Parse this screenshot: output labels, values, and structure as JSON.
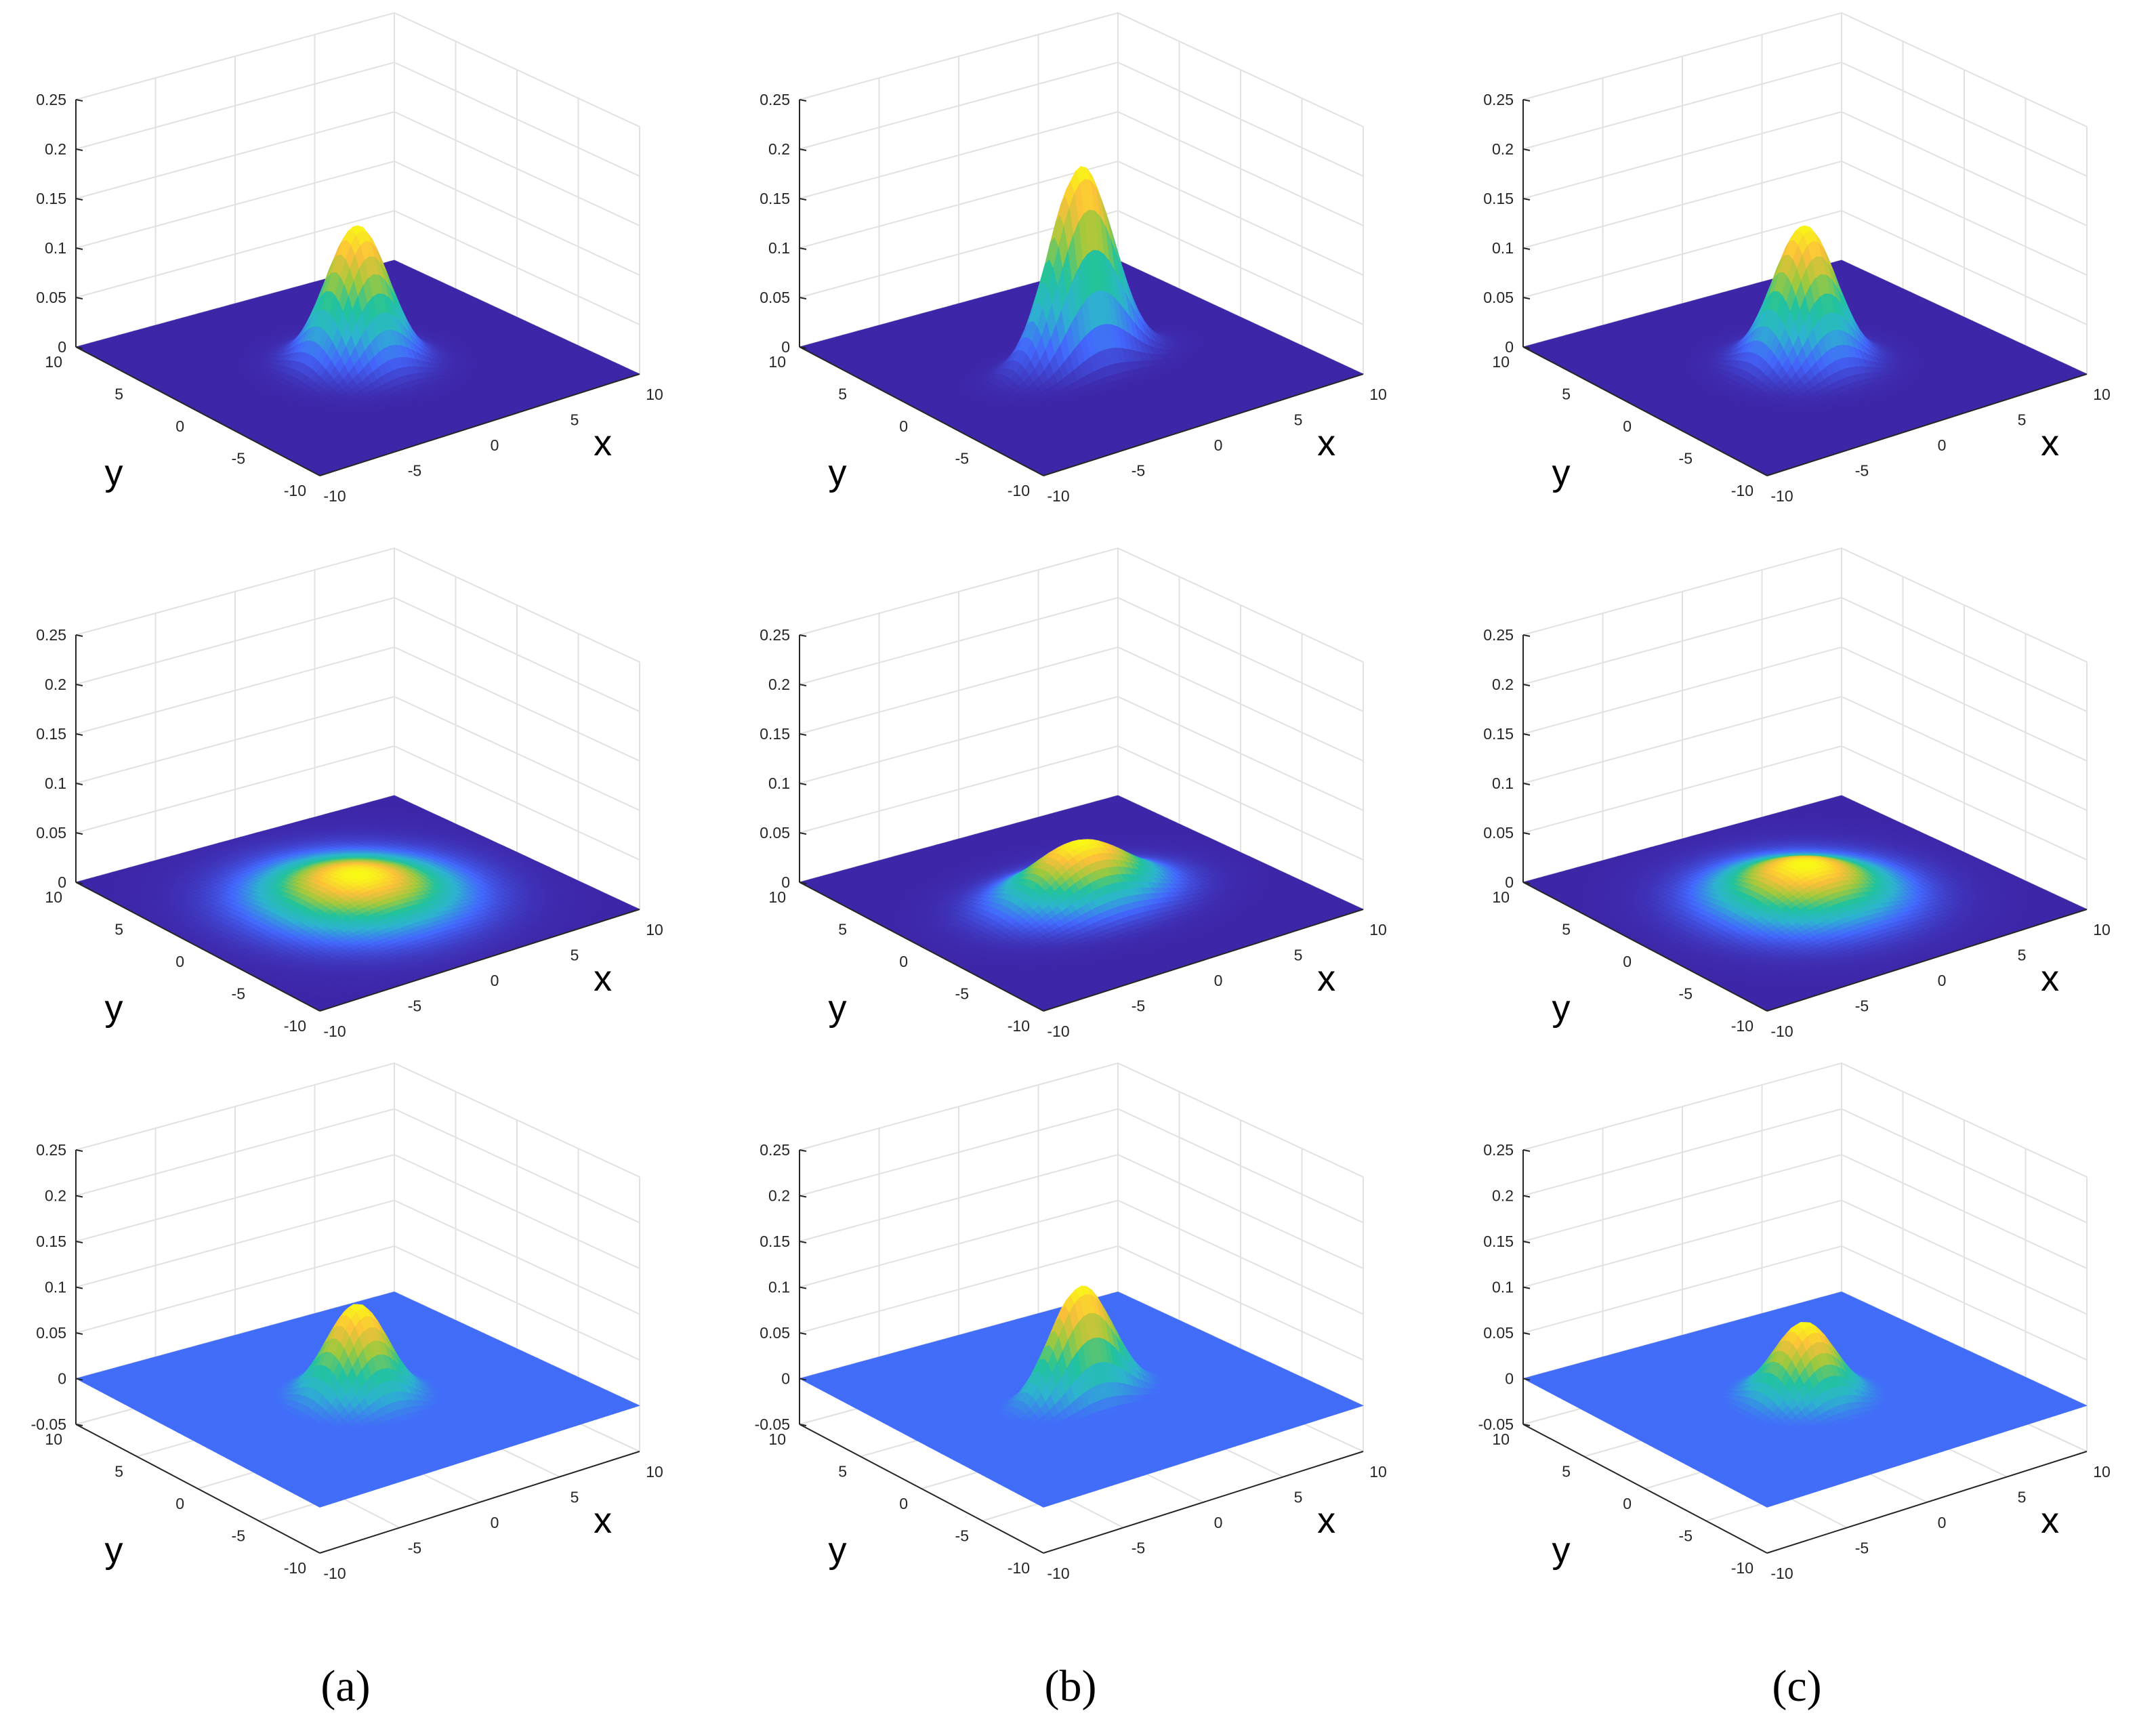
{
  "figure": {
    "captions": [
      "(a)",
      "(b)",
      "(c)"
    ]
  },
  "colors": {
    "colormap": [
      "#3e26a8",
      "#4367fd",
      "#2db4cf",
      "#21c39d",
      "#9fc93d",
      "#fbc03a",
      "#f9fb15"
    ],
    "background": "#ffffff",
    "grid": "#e1e1e1",
    "axis": "#262626"
  },
  "chart_data": [
    {
      "type": "surface",
      "panel": "row1-a",
      "xlabel": "x",
      "ylabel": "y",
      "xlim": [
        -10,
        10
      ],
      "ylim": [
        -10,
        10
      ],
      "zlim": [
        0,
        0.25
      ],
      "zticks": [
        "0",
        "0.05",
        "0.1",
        "0.15",
        "0.2",
        "0.25"
      ],
      "xticks": [
        "-10",
        "-5",
        "0",
        "5",
        "10"
      ],
      "yticks": [
        "-10",
        "-5",
        "0",
        "5",
        "10"
      ],
      "peak": 0.14,
      "center": [
        0,
        0
      ],
      "sigma": [
        1.6,
        1.6
      ],
      "floor": 0,
      "dip": 0
    },
    {
      "type": "surface",
      "panel": "row1-b",
      "xlabel": "x",
      "ylabel": "y",
      "xlim": [
        -10,
        10
      ],
      "ylim": [
        -10,
        10
      ],
      "zlim": [
        0,
        0.25
      ],
      "zticks": [
        "0",
        "0.05",
        "0.1",
        "0.15",
        "0.2",
        "0.25"
      ],
      "xticks": [
        "-10",
        "-5",
        "0",
        "5",
        "10"
      ],
      "yticks": [
        "-10",
        "-5",
        "0",
        "5",
        "10"
      ],
      "peak": 0.2,
      "center": [
        0,
        0
      ],
      "sigma": [
        1.9,
        1.0
      ],
      "floor": 0,
      "dip": 0
    },
    {
      "type": "surface",
      "panel": "row1-c",
      "xlabel": "x",
      "ylabel": "y",
      "xlim": [
        -10,
        10
      ],
      "ylim": [
        -10,
        10
      ],
      "zlim": [
        0,
        0.25
      ],
      "zticks": [
        "0",
        "0.05",
        "0.1",
        "0.15",
        "0.2",
        "0.25"
      ],
      "xticks": [
        "-10",
        "-5",
        "0",
        "5",
        "10"
      ],
      "yticks": [
        "-10",
        "-5",
        "0",
        "5",
        "10"
      ],
      "peak": 0.14,
      "center": [
        0,
        0
      ],
      "sigma": [
        1.6,
        1.6
      ],
      "floor": 0,
      "dip": 0
    },
    {
      "type": "surface",
      "panel": "row2-a",
      "xlabel": "x",
      "ylabel": "y",
      "xlim": [
        -10,
        10
      ],
      "ylim": [
        -10,
        10
      ],
      "zlim": [
        0,
        0.25
      ],
      "zticks": [
        "0",
        "0.05",
        "0.1",
        "0.15",
        "0.2",
        "0.25"
      ],
      "xticks": [
        "-10",
        "-5",
        "0",
        "5",
        "10"
      ],
      "yticks": [
        "-10",
        "-5",
        "0",
        "5",
        "10"
      ],
      "peak": 0.025,
      "center": [
        0,
        0
      ],
      "sigma": [
        3.3,
        3.3
      ],
      "floor": 0,
      "dip": 0
    },
    {
      "type": "surface",
      "panel": "row2-b",
      "xlabel": "x",
      "ylabel": "y",
      "xlim": [
        -10,
        10
      ],
      "ylim": [
        -10,
        10
      ],
      "zlim": [
        0,
        0.25
      ],
      "zticks": [
        "0",
        "0.05",
        "0.1",
        "0.15",
        "0.2",
        "0.25"
      ],
      "xticks": [
        "-10",
        "-5",
        "0",
        "5",
        "10"
      ],
      "yticks": [
        "-10",
        "-5",
        "0",
        "5",
        "10"
      ],
      "peak": 0.058,
      "center": [
        0,
        0
      ],
      "sigma": [
        2.8,
        2.0
      ],
      "floor": 0,
      "dip": 0
    },
    {
      "type": "surface",
      "panel": "row2-c",
      "xlabel": "x",
      "ylabel": "y",
      "xlim": [
        -10,
        10
      ],
      "ylim": [
        -10,
        10
      ],
      "zlim": [
        0,
        0.25
      ],
      "zticks": [
        "0",
        "0.05",
        "0.1",
        "0.15",
        "0.2",
        "0.25"
      ],
      "xticks": [
        "-10",
        "-5",
        "0",
        "5",
        "10"
      ],
      "yticks": [
        "-10",
        "-5",
        "0",
        "5",
        "10"
      ],
      "peak": 0.035,
      "center": [
        0,
        0
      ],
      "sigma": [
        3.0,
        3.0
      ],
      "floor": 0,
      "dip": 0
    },
    {
      "type": "surface",
      "panel": "row3-a",
      "xlabel": "x",
      "ylabel": "y",
      "xlim": [
        -10,
        10
      ],
      "ylim": [
        -10,
        10
      ],
      "zlim": [
        -0.05,
        0.25
      ],
      "zticks": [
        "-0.05",
        "0",
        "0.05",
        "0.1",
        "0.15",
        "0.2",
        "0.25"
      ],
      "xticks": [
        "-10",
        "-5",
        "0",
        "5",
        "10"
      ],
      "yticks": [
        "-10",
        "-5",
        "0",
        "5",
        "10"
      ],
      "peak": 0.1,
      "center": [
        0,
        0
      ],
      "sigma": [
        1.6,
        1.6
      ],
      "floor": 0,
      "dip": 0.006
    },
    {
      "type": "surface",
      "panel": "row3-b",
      "xlabel": "x",
      "ylabel": "y",
      "xlim": [
        -10,
        10
      ],
      "ylim": [
        -10,
        10
      ],
      "zlim": [
        -0.05,
        0.25
      ],
      "zticks": [
        "-0.05",
        "0",
        "0.05",
        "0.1",
        "0.15",
        "0.2",
        "0.25"
      ],
      "xticks": [
        "-10",
        "-5",
        "0",
        "5",
        "10"
      ],
      "yticks": [
        "-10",
        "-5",
        "0",
        "5",
        "10"
      ],
      "peak": 0.12,
      "center": [
        0,
        0
      ],
      "sigma": [
        1.9,
        1.0
      ],
      "floor": 0,
      "dip": 0.008
    },
    {
      "type": "surface",
      "panel": "row3-c",
      "xlabel": "x",
      "ylabel": "y",
      "xlim": [
        -10,
        10
      ],
      "ylim": [
        -10,
        10
      ],
      "zlim": [
        -0.05,
        0.25
      ],
      "zticks": [
        "-0.05",
        "0",
        "0.05",
        "0.1",
        "0.15",
        "0.2",
        "0.25"
      ],
      "xticks": [
        "-10",
        "-5",
        "0",
        "5",
        "10"
      ],
      "yticks": [
        "-10",
        "-5",
        "0",
        "5",
        "10"
      ],
      "peak": 0.08,
      "center": [
        0,
        0
      ],
      "sigma": [
        1.6,
        1.6
      ],
      "floor": 0,
      "dip": 0.005
    }
  ]
}
